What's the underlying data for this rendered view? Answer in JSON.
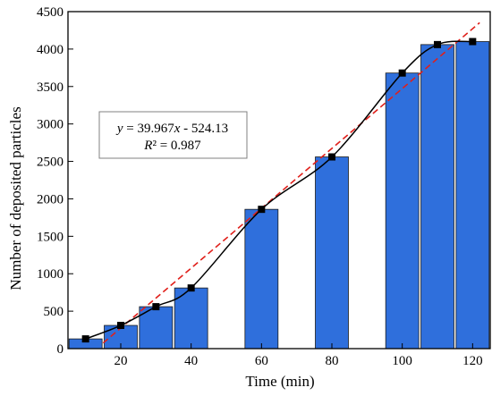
{
  "chart_data": {
    "type": "bar",
    "xlabel": "Time (min)",
    "ylabel": "Number of deposited particles",
    "xlim": [
      5,
      125
    ],
    "ylim": [
      0,
      4500
    ],
    "x_ticks": [
      20,
      40,
      60,
      80,
      100,
      120
    ],
    "y_ticks": [
      0,
      500,
      1000,
      1500,
      2000,
      2500,
      3000,
      3500,
      4000,
      4500
    ],
    "x": [
      10,
      20,
      30,
      40,
      60,
      80,
      100,
      110,
      120
    ],
    "series": [
      {
        "type": "bar",
        "values": [
          130,
          310,
          560,
          810,
          1860,
          2560,
          3680,
          4060,
          4100
        ],
        "color": "#2f6fdc"
      },
      {
        "type": "line",
        "marker": "square",
        "values": [
          130,
          310,
          560,
          810,
          1860,
          2560,
          3680,
          4060,
          4100
        ],
        "color": "#000000"
      }
    ],
    "trendline": {
      "slope": 39.967,
      "intercept": -524.13,
      "color": "#e0201b",
      "style": "dashed",
      "x_range": [
        15,
        122
      ]
    },
    "annotation": {
      "equation": {
        "y": "y",
        "eq": " = 39.967",
        "x": "x",
        "rest": " - 524.13"
      },
      "r2": {
        "sym": "R",
        "rest": "² = 0.987"
      }
    },
    "grid": false,
    "legend": "none"
  }
}
